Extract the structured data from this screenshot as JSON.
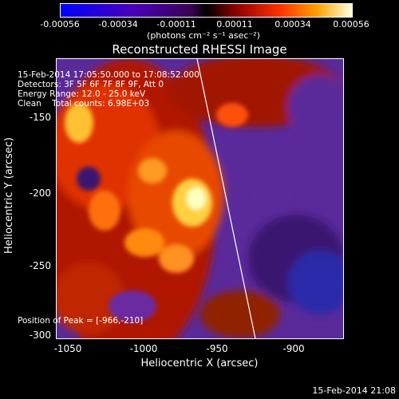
{
  "colorbar": {
    "ticks": [
      "-0.00056",
      "-0.00034",
      "-0.00011",
      "0.00011",
      "0.00034",
      "0.00056"
    ],
    "units": "(photons cm⁻² s⁻¹ asec⁻²)"
  },
  "title": "Reconstructed RHESSI Image",
  "info": {
    "time": "15-Feb-2014 17:05:50.000 to 17:08:52.000",
    "detectors": "Detectors: 3F 5F 6F 7F 8F 9F, Att 0",
    "energy": "Energy Range: 12.0 - 25.0 keV",
    "clean": "Clean    Total counts: 6.98E+03",
    "peak": "Position of Peak = [-966,-210]"
  },
  "axes": {
    "xlabel": "Heliocentric X (arcsec)",
    "ylabel": "Heliocentric Y (arcsec)",
    "xticks": [
      "-1050",
      "-1000",
      "-950",
      "-900"
    ],
    "yticks": [
      "-150",
      "-200",
      "-250",
      "-300"
    ]
  },
  "timestamp": "15-Feb-2014 21:08"
}
